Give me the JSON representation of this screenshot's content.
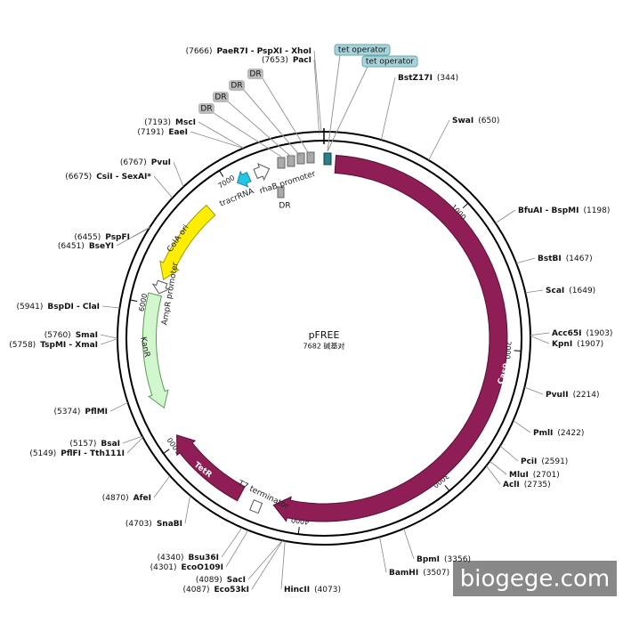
{
  "title": "pFREE",
  "size": {
    "value": 7682,
    "label": "7682 碱基对"
  },
  "ticks": [
    1000,
    2000,
    3000,
    4000,
    5000,
    6000,
    7000
  ],
  "sites": [
    {
      "name": "PaeR7I - PspXI - XhoI",
      "position": {
        "value": 7666,
        "label": "(7666)"
      }
    },
    {
      "name": "PacI",
      "position": {
        "value": 7653,
        "label": "(7653)"
      }
    },
    {
      "name": "BstZ17I",
      "position": {
        "value": 344,
        "label": "(344)"
      }
    },
    {
      "name": "SwaI",
      "position": {
        "value": 650,
        "label": "(650)"
      }
    },
    {
      "name": "BfuAI - BspMI",
      "position": {
        "value": 1198,
        "label": "(1198)"
      }
    },
    {
      "name": "BstBI",
      "position": {
        "value": 1467,
        "label": "(1467)"
      }
    },
    {
      "name": "ScaI",
      "position": {
        "value": 1649,
        "label": "(1649)"
      }
    },
    {
      "name": "Acc65I",
      "position": {
        "value": 1903,
        "label": "(1903)"
      }
    },
    {
      "name": "KpnI",
      "position": {
        "value": 1907,
        "label": "(1907)"
      }
    },
    {
      "name": "PvuII",
      "position": {
        "value": 2214,
        "label": "(2214)"
      }
    },
    {
      "name": "PmlI",
      "position": {
        "value": 2422,
        "label": "(2422)"
      }
    },
    {
      "name": "PciI",
      "position": {
        "value": 2591,
        "label": "(2591)"
      }
    },
    {
      "name": "MluI",
      "position": {
        "value": 2701,
        "label": "(2701)"
      }
    },
    {
      "name": "AclI",
      "position": {
        "value": 2735,
        "label": "(2735)"
      }
    },
    {
      "name": "BpmI",
      "position": {
        "value": 3356,
        "label": "(3356)"
      }
    },
    {
      "name": "BamHI",
      "position": {
        "value": 3507,
        "label": "(3507)"
      }
    },
    {
      "name": "HincII",
      "position": {
        "value": 4073,
        "label": "(4073)"
      }
    },
    {
      "name": "Eco53kI",
      "position": {
        "value": 4087,
        "label": "(4087)"
      }
    },
    {
      "name": "SacI",
      "position": {
        "value": 4089,
        "label": "(4089)"
      }
    },
    {
      "name": "EcoO109I",
      "position": {
        "value": 4301,
        "label": "(4301)"
      }
    },
    {
      "name": "Bsu36I",
      "position": {
        "value": 4340,
        "label": "(4340)"
      }
    },
    {
      "name": "SnaBI",
      "position": {
        "value": 4703,
        "label": "(4703)"
      }
    },
    {
      "name": "AfeI",
      "position": {
        "value": 4870,
        "label": "(4870)"
      }
    },
    {
      "name": "PflFI - Tth111I",
      "position": {
        "value": 5149,
        "label": "(5149)"
      }
    },
    {
      "name": "BsaI",
      "position": {
        "value": 5157,
        "label": "(5157)"
      }
    },
    {
      "name": "PflMI",
      "position": {
        "value": 5374,
        "label": "(5374)"
      }
    },
    {
      "name": "TspMI - XmaI",
      "position": {
        "value": 5758,
        "label": "(5758)"
      }
    },
    {
      "name": "SmaI",
      "position": {
        "value": 5760,
        "label": "(5760)"
      }
    },
    {
      "name": "BspDI - ClaI",
      "position": {
        "value": 5941,
        "label": "(5941)"
      }
    },
    {
      "name": "BseYI",
      "position": {
        "value": 6451,
        "label": "(6451)"
      }
    },
    {
      "name": "PspFI",
      "position": {
        "value": 6455,
        "label": "(6455)"
      }
    },
    {
      "name": "CsiI - SexAI*",
      "position": {
        "value": 6675,
        "label": "(6675)"
      }
    },
    {
      "name": "PvuI",
      "position": {
        "value": 6767,
        "label": "(6767)"
      }
    },
    {
      "name": "EaeI",
      "position": {
        "value": 7191,
        "label": "(7191)"
      }
    },
    {
      "name": "MscI",
      "position": {
        "value": 7193,
        "label": "(7193)"
      }
    }
  ],
  "features": [
    "Cas9",
    "TetR",
    "KanR",
    "ColA ori",
    "AmpR promoter",
    "rhaB promoter",
    "tracrRNA",
    "T7 terminator"
  ],
  "dr_labels": [
    "DR",
    "DR",
    "DR",
    "DR",
    "DR"
  ],
  "operators": [
    "tet operator",
    "tet operator"
  ],
  "watermark": "biogege.com"
}
